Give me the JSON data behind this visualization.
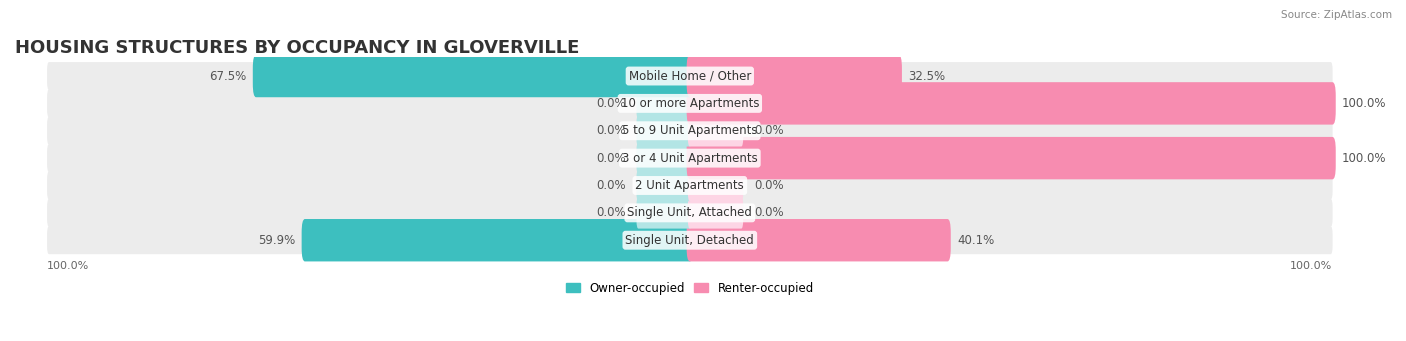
{
  "title": "HOUSING STRUCTURES BY OCCUPANCY IN GLOVERVILLE",
  "source": "Source: ZipAtlas.com",
  "categories": [
    "Single Unit, Detached",
    "Single Unit, Attached",
    "2 Unit Apartments",
    "3 or 4 Unit Apartments",
    "5 to 9 Unit Apartments",
    "10 or more Apartments",
    "Mobile Home / Other"
  ],
  "owner_pct": [
    59.9,
    0.0,
    0.0,
    0.0,
    0.0,
    0.0,
    67.5
  ],
  "renter_pct": [
    40.1,
    0.0,
    0.0,
    100.0,
    0.0,
    100.0,
    32.5
  ],
  "owner_color": "#3dbfbf",
  "renter_color": "#f78cb0",
  "owner_light": "#b2e5e5",
  "renter_light": "#fdd5e5",
  "bg_row": "#f0f0f0",
  "bar_height": 0.55,
  "total_width": 100.0,
  "x_left_label": "100.0%",
  "x_right_label": "100.0%",
  "legend_owner": "Owner-occupied",
  "legend_renter": "Renter-occupied",
  "title_fontsize": 13,
  "label_fontsize": 8.5,
  "category_fontsize": 8.5,
  "axis_label_fontsize": 8
}
